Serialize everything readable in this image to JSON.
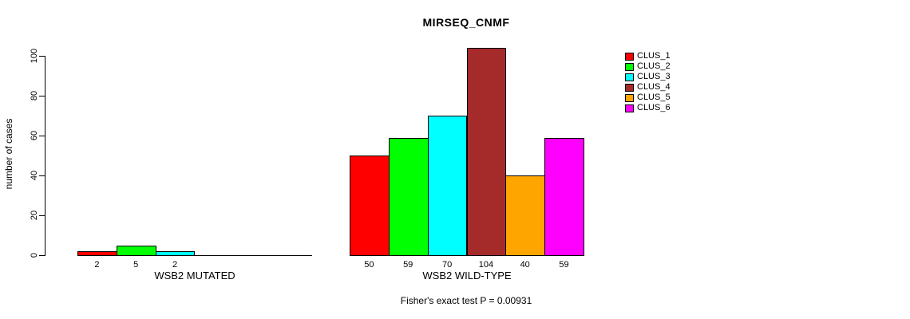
{
  "chart_data": {
    "type": "bar",
    "title": "MIRSEQ_CNMF",
    "ylabel": "number of cases",
    "ylim": [
      0,
      110
    ],
    "yticks": [
      0,
      20,
      40,
      60,
      80,
      100
    ],
    "grid": false,
    "legend_position": "right",
    "clusters": [
      {
        "name": "CLUS_1",
        "color": "#FF0000"
      },
      {
        "name": "CLUS_2",
        "color": "#00FF00"
      },
      {
        "name": "CLUS_3",
        "color": "#00FFFF"
      },
      {
        "name": "CLUS_4",
        "color": "#A52A2A"
      },
      {
        "name": "CLUS_5",
        "color": "#FFA500"
      },
      {
        "name": "CLUS_6",
        "color": "#FF00FF"
      }
    ],
    "groups": [
      {
        "label": "WSB2 MUTATED",
        "values": [
          2,
          5,
          2,
          0,
          0,
          0
        ]
      },
      {
        "label": "WSB2 WILD-TYPE",
        "values": [
          50,
          59,
          70,
          104,
          40,
          59
        ]
      }
    ],
    "footnote": "Fisher's exact test P = 0.00931"
  }
}
